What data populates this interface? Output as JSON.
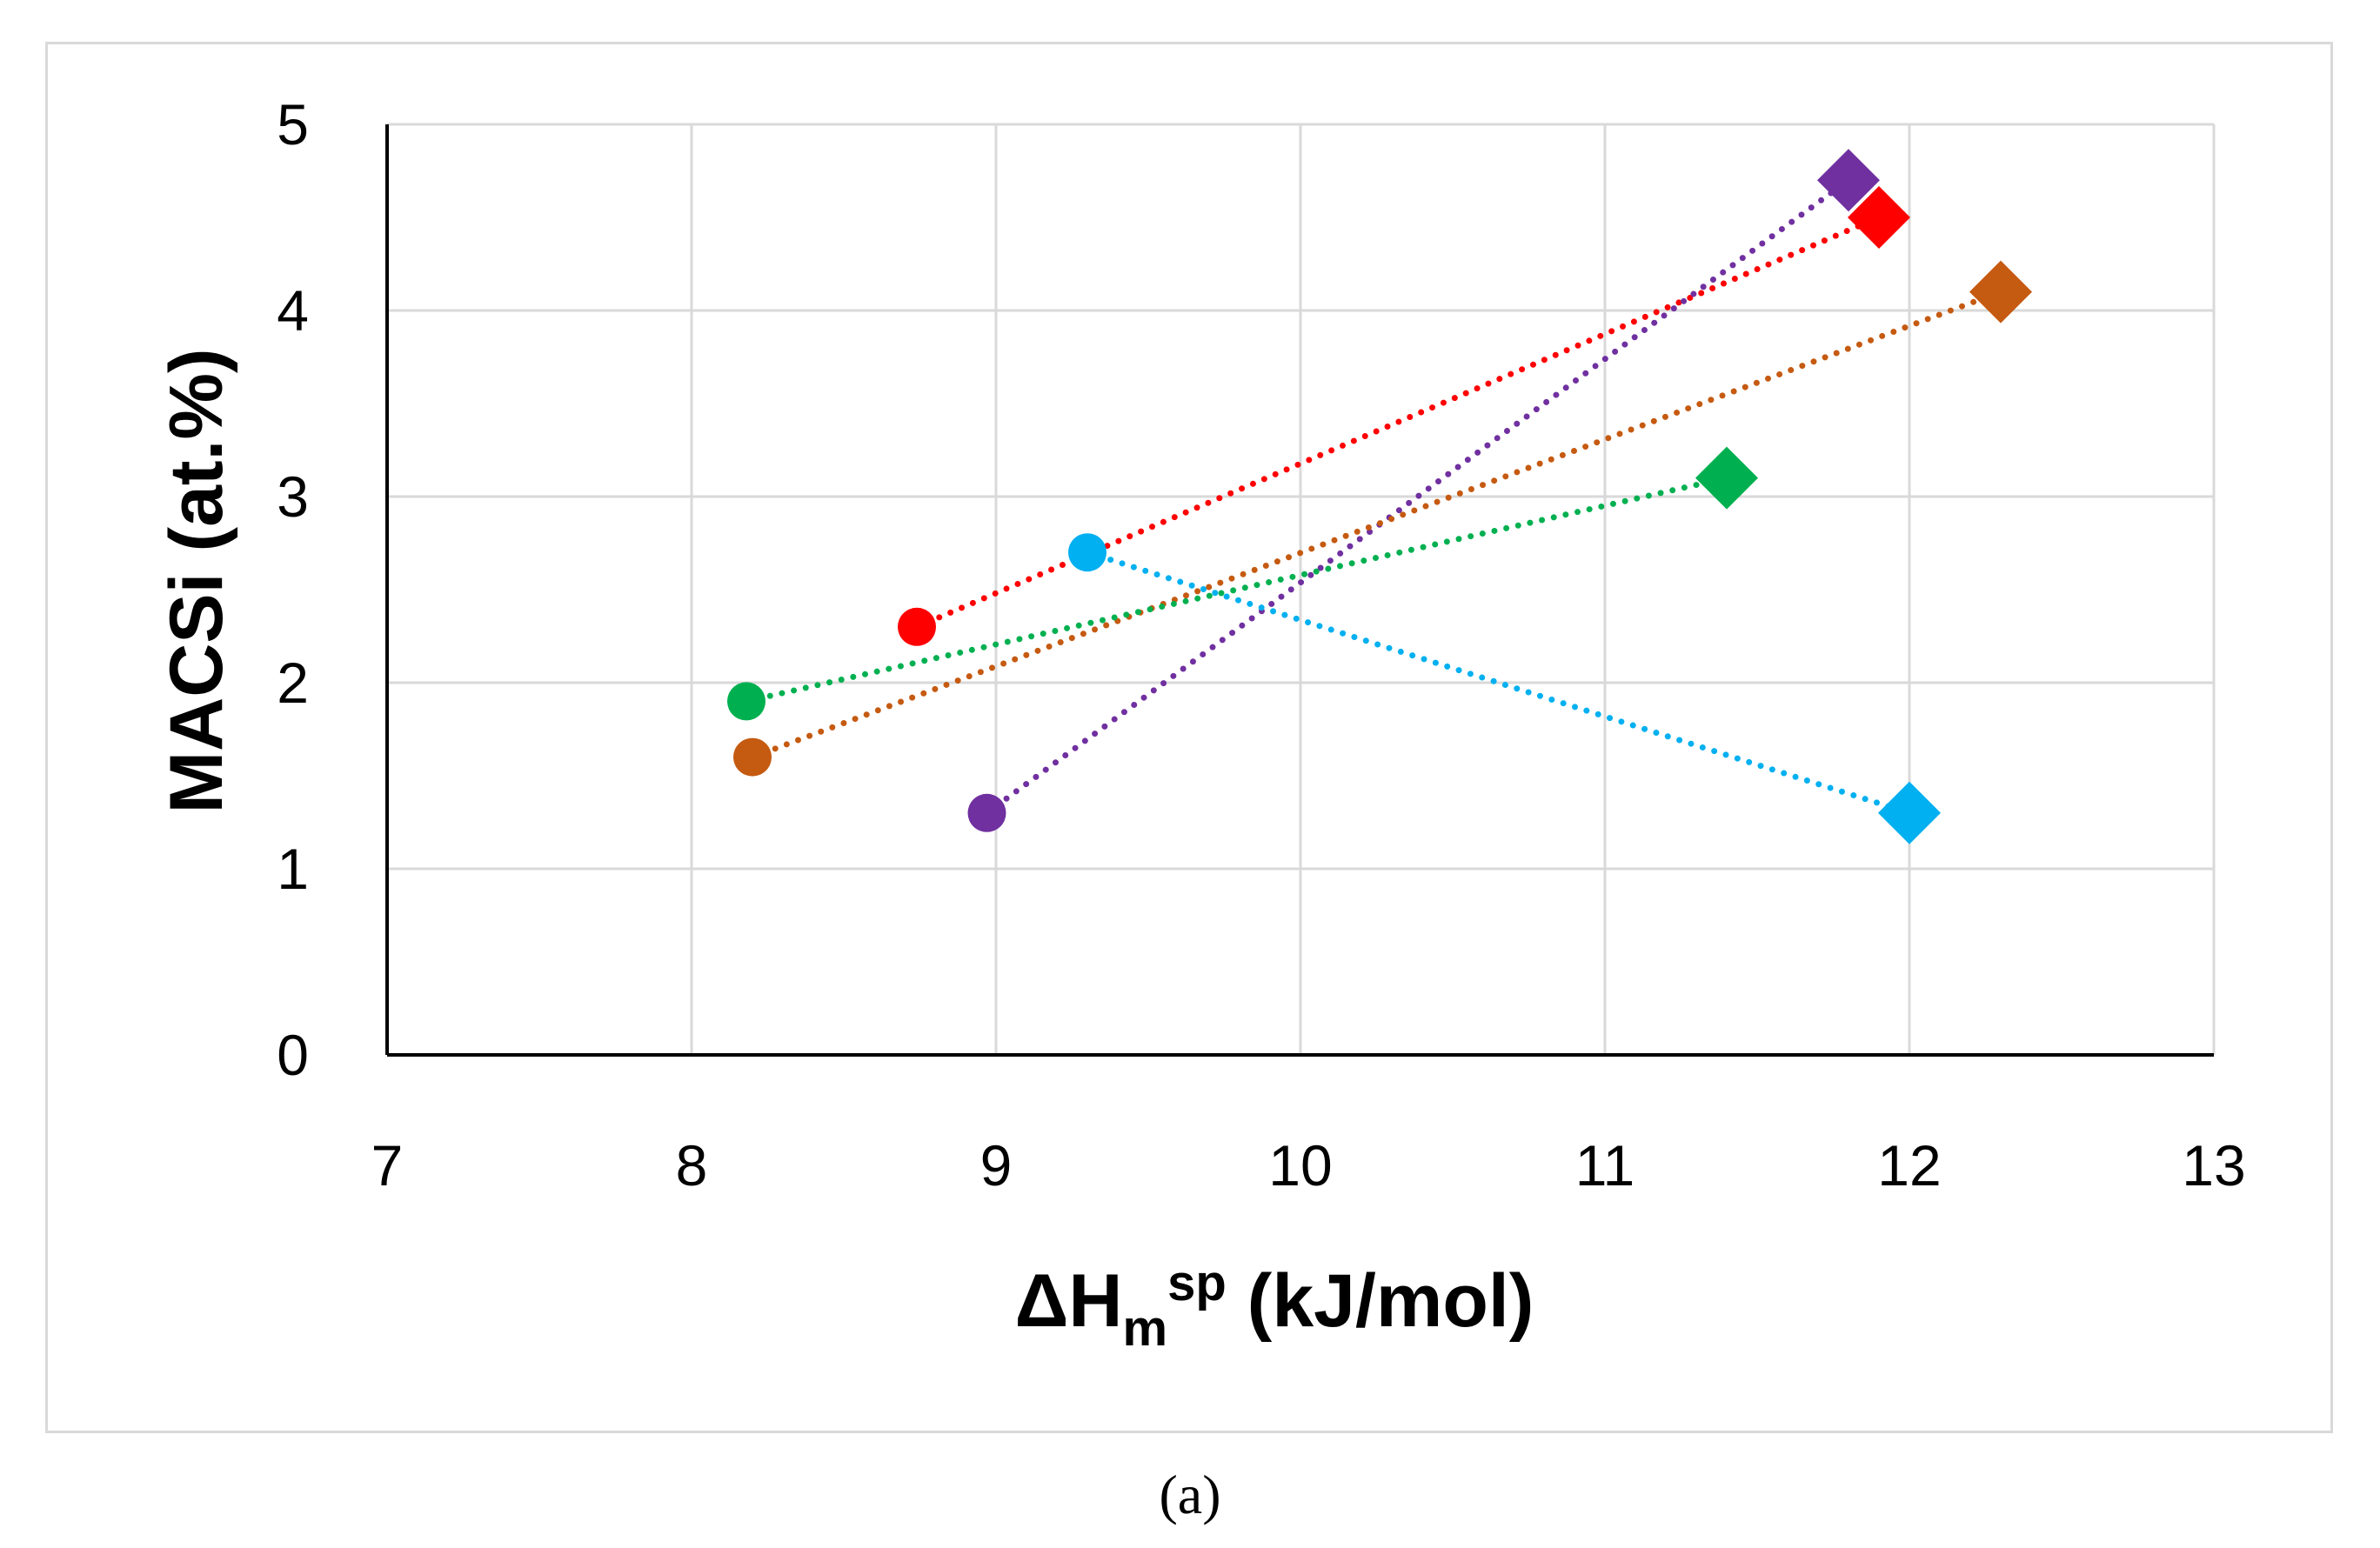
{
  "chart_data": {
    "type": "scatter",
    "title": "",
    "panel_label": "(a)",
    "xlabel": {
      "base": "ΔH",
      "subscript": "m",
      "superscript": "sp",
      "suffix": " (kJ/mol)"
    },
    "ylabel": "MACSi (at.%)",
    "xlim": [
      7,
      13
    ],
    "ylim": [
      0,
      5
    ],
    "x_ticks": [
      7,
      8,
      9,
      10,
      11,
      12,
      13
    ],
    "y_ticks": [
      0,
      1,
      2,
      3,
      4,
      5
    ],
    "grid": true,
    "legend": "none",
    "series": [
      {
        "name": "red",
        "color": "#ff0000",
        "line": "dotted",
        "points": [
          {
            "x": 8.74,
            "y": 2.3,
            "marker": "circle"
          },
          {
            "x": 11.9,
            "y": 4.5,
            "marker": "diamond"
          }
        ]
      },
      {
        "name": "purple",
        "color": "#7030a0",
        "line": "dotted",
        "points": [
          {
            "x": 8.97,
            "y": 1.3,
            "marker": "circle"
          },
          {
            "x": 11.8,
            "y": 4.7,
            "marker": "diamond"
          }
        ]
      },
      {
        "name": "orange",
        "color": "#c55a11",
        "line": "dotted",
        "points": [
          {
            "x": 8.2,
            "y": 1.6,
            "marker": "circle"
          },
          {
            "x": 12.3,
            "y": 4.1,
            "marker": "diamond"
          }
        ]
      },
      {
        "name": "green",
        "color": "#00b050",
        "line": "dotted",
        "points": [
          {
            "x": 8.18,
            "y": 1.9,
            "marker": "circle"
          },
          {
            "x": 11.4,
            "y": 3.1,
            "marker": "diamond"
          }
        ]
      },
      {
        "name": "blue",
        "color": "#00b0f0",
        "line": "dotted",
        "points": [
          {
            "x": 9.3,
            "y": 2.7,
            "marker": "circle"
          },
          {
            "x": 12.0,
            "y": 1.3,
            "marker": "diamond"
          }
        ]
      }
    ]
  }
}
